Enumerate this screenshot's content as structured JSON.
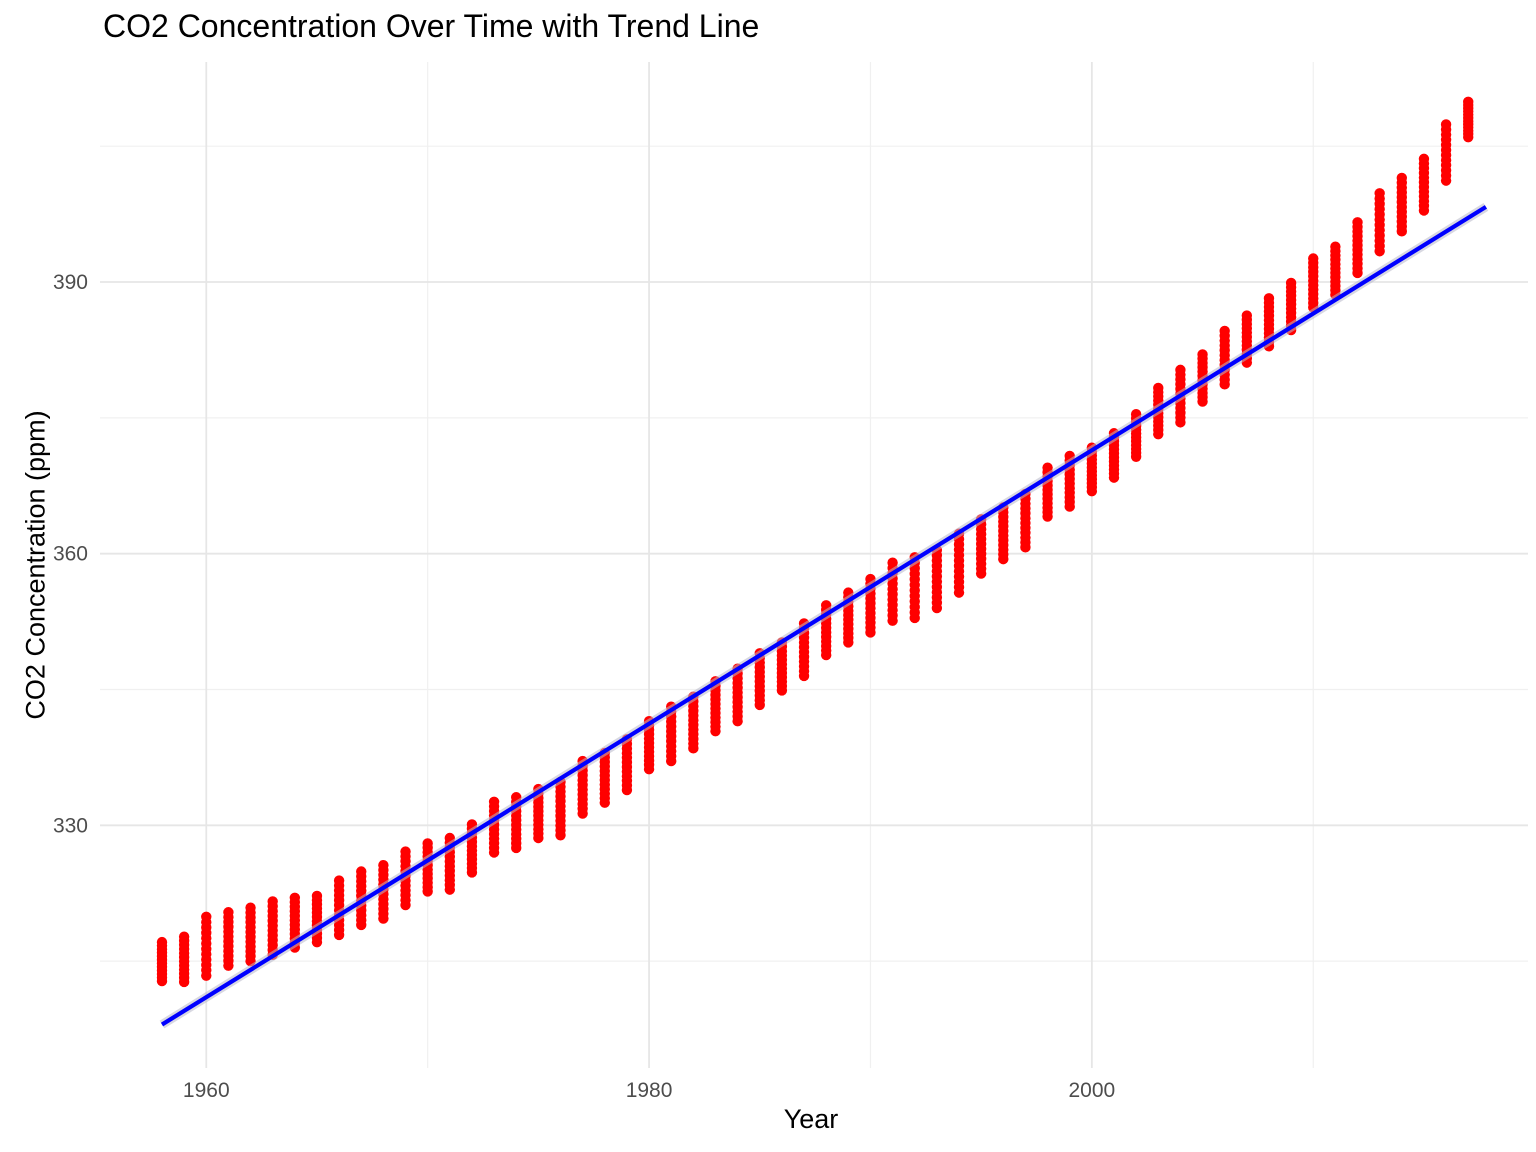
{
  "chart_data": {
    "type": "scatter",
    "title": "CO2 Concentration Over Time with Trend Line",
    "xlabel": "Year",
    "ylabel": "CO2 Concentration (ppm)",
    "xlim": [
      1955.2,
      2019.7
    ],
    "ylim": [
      303.2,
      414.3
    ],
    "x_ticks": [
      1960,
      1980,
      2000
    ],
    "x_tick_labels": [
      "1960",
      "1980",
      "2000"
    ],
    "x_minor_ticks": [
      1970,
      1990,
      2010
    ],
    "y_ticks": [
      330,
      360,
      390
    ],
    "y_tick_labels": [
      "330",
      "360",
      "390"
    ],
    "y_minor_ticks": [
      315,
      345,
      375,
      405
    ],
    "grid": true,
    "legend": "none",
    "series": [
      {
        "type": "scatter",
        "color": "#FF0000",
        "points_per_year": 12,
        "yearly_range": [
          [
            1958,
            312.8,
            317.1
          ],
          [
            1959,
            312.7,
            317.7
          ],
          [
            1960,
            313.4,
            319.9
          ],
          [
            1961,
            314.5,
            320.4
          ],
          [
            1962,
            315.0,
            320.9
          ],
          [
            1963,
            315.7,
            321.6
          ],
          [
            1964,
            316.5,
            322.0
          ],
          [
            1965,
            317.1,
            322.2
          ],
          [
            1966,
            317.9,
            323.9
          ],
          [
            1967,
            319.0,
            324.9
          ],
          [
            1968,
            319.7,
            325.6
          ],
          [
            1969,
            321.2,
            327.1
          ],
          [
            1970,
            322.7,
            328.0
          ],
          [
            1971,
            322.9,
            328.6
          ],
          [
            1972,
            324.8,
            330.1
          ],
          [
            1973,
            327.0,
            332.6
          ],
          [
            1974,
            327.5,
            333.1
          ],
          [
            1975,
            328.6,
            334.0
          ],
          [
            1976,
            328.9,
            334.8
          ],
          [
            1977,
            331.3,
            337.1
          ],
          [
            1978,
            332.5,
            338.0
          ],
          [
            1979,
            333.9,
            339.5
          ],
          [
            1980,
            336.2,
            341.5
          ],
          [
            1981,
            337.1,
            343.1
          ],
          [
            1982,
            338.5,
            344.2
          ],
          [
            1983,
            340.4,
            345.9
          ],
          [
            1984,
            341.5,
            347.3
          ],
          [
            1985,
            343.3,
            349.0
          ],
          [
            1986,
            344.9,
            350.2
          ],
          [
            1987,
            346.5,
            352.3
          ],
          [
            1988,
            348.8,
            354.3
          ],
          [
            1989,
            350.2,
            355.7
          ],
          [
            1990,
            351.3,
            357.2
          ],
          [
            1991,
            352.6,
            359.0
          ],
          [
            1992,
            352.9,
            359.6
          ],
          [
            1993,
            354.0,
            360.4
          ],
          [
            1994,
            355.7,
            362.2
          ],
          [
            1995,
            357.8,
            363.8
          ],
          [
            1996,
            359.4,
            365.1
          ],
          [
            1997,
            360.7,
            366.6
          ],
          [
            1998,
            364.1,
            369.5
          ],
          [
            1999,
            365.2,
            370.8
          ],
          [
            2000,
            366.9,
            371.7
          ],
          [
            2001,
            368.4,
            373.3
          ],
          [
            2002,
            370.7,
            375.4
          ],
          [
            2003,
            373.2,
            378.3
          ],
          [
            2004,
            374.5,
            380.3
          ],
          [
            2005,
            376.8,
            382.0
          ],
          [
            2006,
            378.7,
            384.6
          ],
          [
            2007,
            381.1,
            386.3
          ],
          [
            2008,
            382.9,
            388.2
          ],
          [
            2009,
            384.7,
            389.9
          ],
          [
            2010,
            387.2,
            392.6
          ],
          [
            2011,
            388.6,
            393.9
          ],
          [
            2012,
            391.0,
            396.6
          ],
          [
            2013,
            393.4,
            399.8
          ],
          [
            2014,
            395.6,
            401.5
          ],
          [
            2015,
            397.9,
            403.6
          ],
          [
            2016,
            401.2,
            407.4
          ],
          [
            2017,
            406.0,
            409.9
          ]
        ]
      },
      {
        "type": "line",
        "color": "#0000FF",
        "x": [
          1958,
          2017.8
        ],
        "y": [
          308.0,
          398.3
        ]
      }
    ]
  }
}
